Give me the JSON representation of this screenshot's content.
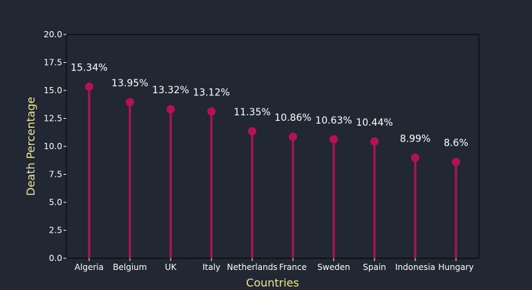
{
  "chart_data": {
    "type": "lollipop",
    "categories": [
      "Algeria",
      "Belgium",
      "UK",
      "Italy",
      "Netherlands",
      "France",
      "Sweden",
      "Spain",
      "Indonesia",
      "Hungary"
    ],
    "values": [
      15.34,
      13.95,
      13.32,
      13.12,
      11.35,
      10.86,
      10.63,
      10.44,
      8.99,
      8.6
    ],
    "data_labels": [
      "15.34%",
      "13.95%",
      "13.32%",
      "13.12%",
      "11.35%",
      "10.86%",
      "10.63%",
      "10.44%",
      "8.99%",
      "8.6%"
    ],
    "title": "",
    "xlabel": "Countries",
    "ylabel": "Death Percentage",
    "ylim": [
      0,
      20
    ],
    "yticks": [
      "0.0",
      "2.5",
      "5.0",
      "7.5",
      "10.0",
      "12.5",
      "15.0",
      "17.5",
      "20.0"
    ],
    "grid": false,
    "colors": {
      "background": "#222833",
      "plot_background": "#222833",
      "marker": "#b5115b",
      "axis_label": "#f0e68c",
      "text": "#ffffff"
    }
  }
}
